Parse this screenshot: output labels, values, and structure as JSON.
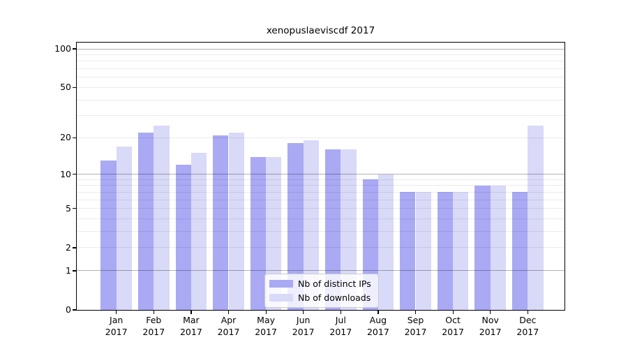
{
  "title": "xenopuslaeviscdf 2017",
  "chart_data": {
    "type": "bar",
    "title": "xenopuslaeviscdf 2017",
    "categories": [
      "Jan 2017",
      "Feb 2017",
      "Mar 2017",
      "Apr 2017",
      "May 2017",
      "Jun 2017",
      "Jul 2017",
      "Aug 2017",
      "Sep 2017",
      "Oct 2017",
      "Nov 2017",
      "Dec 2017"
    ],
    "series": [
      {
        "name": "Nb of distinct IPs",
        "color": "#a9a9f4",
        "values": [
          13,
          22,
          12,
          21,
          14,
          18,
          16,
          9,
          7,
          7,
          8,
          7
        ]
      },
      {
        "name": "Nb of downloads",
        "color": "#d9d9f8",
        "values": [
          17,
          25,
          15,
          22,
          14,
          19,
          16,
          10,
          7,
          7,
          8,
          25
        ]
      }
    ],
    "xlabel": "",
    "ylabel": "",
    "y_scale": "log1p",
    "ylim": [
      0,
      112
    ],
    "y_ticks": [
      100,
      50,
      20,
      10,
      5,
      2,
      1,
      0
    ],
    "y_minor_gridlines": [
      2,
      3,
      4,
      5,
      6,
      7,
      8,
      9,
      20,
      30,
      40,
      50,
      60,
      70,
      80,
      90
    ],
    "y_major_gridlines": [
      1,
      10,
      100
    ],
    "grid": true,
    "legend_position": "lower center"
  },
  "colors": {
    "axis": "#000000",
    "minor_grid": "rgba(0,0,0,0.08)",
    "major_grid": "rgba(0,0,0,0.30)",
    "legend_border": "#cccccc"
  }
}
